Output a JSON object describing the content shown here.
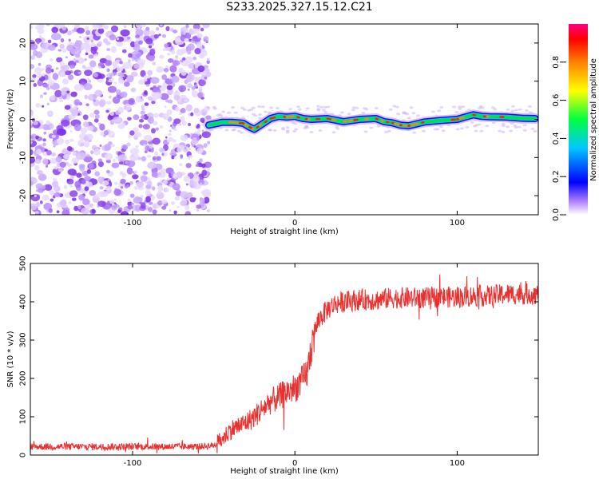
{
  "title": "S233.2025.327.15.12.C21",
  "chart_data": [
    {
      "type": "heatmap",
      "xlabel": "Height of straight line (km)",
      "ylabel": "Frequency (Hz)",
      "xlim": [
        -163,
        150
      ],
      "ylim": [
        -25,
        25
      ],
      "xticks": [
        -100,
        0,
        100
      ],
      "yticks": [
        -20,
        -10,
        0,
        10,
        20
      ],
      "noise_region_x": [
        -163,
        -55
      ],
      "ridge": {
        "x": [
          -53,
          -45,
          -38,
          -32,
          -28,
          -25,
          -20,
          -15,
          -10,
          -5,
          0,
          5,
          10,
          20,
          30,
          40,
          50,
          55,
          60,
          65,
          70,
          75,
          80,
          90,
          100,
          105,
          110,
          115,
          120,
          130,
          140,
          148
        ],
        "y": [
          -1.5,
          -0.8,
          -0.8,
          -1.0,
          -2.0,
          -2.6,
          -1.2,
          0.2,
          0.8,
          0.6,
          0.8,
          0.2,
          0.0,
          0.2,
          -0.6,
          0.0,
          0.2,
          -0.6,
          -0.9,
          -1.5,
          -1.7,
          -1.2,
          -0.7,
          -0.3,
          0.0,
          0.6,
          1.2,
          0.8,
          0.7,
          0.6,
          0.3,
          0.2
        ]
      },
      "colorbar": {
        "label": "Normalized spectral amplitude",
        "range": [
          0,
          1
        ],
        "ticks": [
          "0.0",
          "0.2",
          "0.4",
          "0.6",
          "0.8"
        ]
      }
    },
    {
      "type": "line",
      "color": "#e8302e",
      "xlabel": "Height of straight line (km)",
      "ylabel": "SNR (10 * v/v)",
      "xlim": [
        -163,
        150
      ],
      "ylim": [
        0,
        500
      ],
      "xticks": [
        -100,
        0,
        100
      ],
      "yticks": [
        0,
        100,
        200,
        300,
        400,
        500
      ],
      "series": [
        {
          "name": "SNR",
          "x": [
            -163,
            -140,
            -120,
            -100,
            -80,
            -60,
            -50,
            -45,
            -40,
            -35,
            -30,
            -25,
            -20,
            -15,
            -10,
            -5,
            0,
            5,
            8,
            10,
            12,
            15,
            20,
            25,
            30,
            40,
            50,
            60,
            70,
            80,
            90,
            100,
            110,
            120,
            130,
            140,
            150
          ],
          "values": [
            22,
            22,
            22,
            22,
            22,
            22,
            25,
            40,
            65,
            75,
            85,
            100,
            120,
            140,
            150,
            165,
            175,
            195,
            220,
            280,
            320,
            355,
            380,
            395,
            400,
            405,
            405,
            410,
            410,
            410,
            412,
            412,
            415,
            415,
            420,
            420,
            420
          ]
        }
      ]
    }
  ]
}
